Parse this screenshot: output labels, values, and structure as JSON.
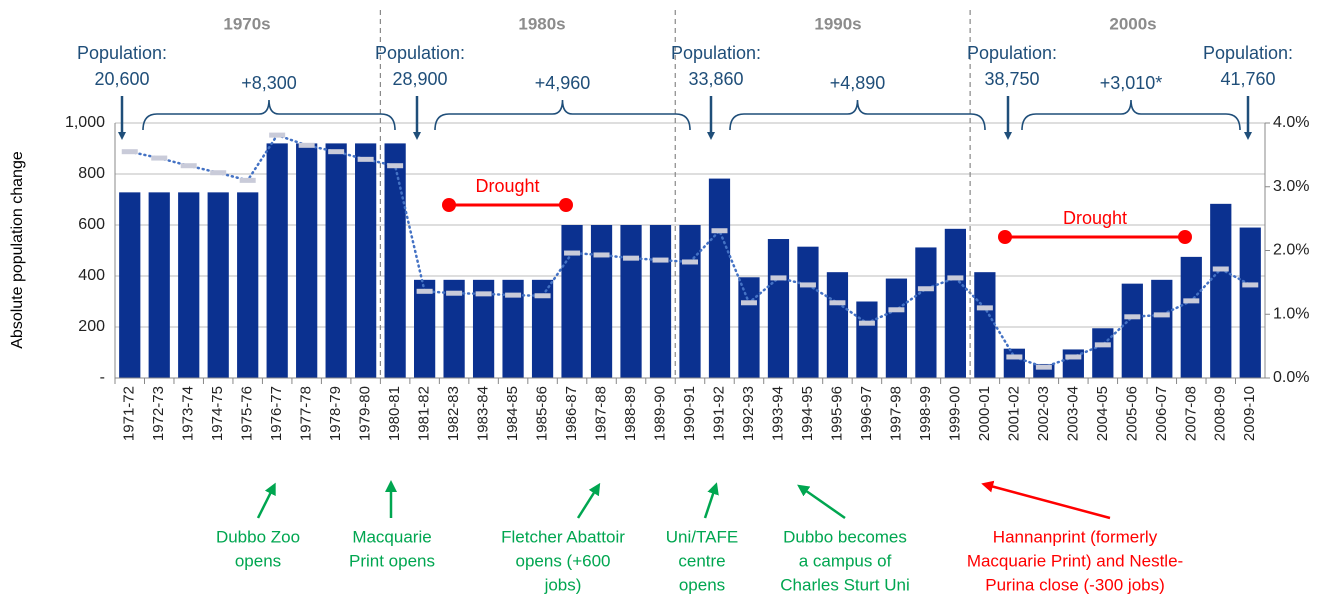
{
  "chart_data": {
    "type": "bar",
    "y_axis_label": "Absolute population change",
    "categories": [
      "1971-72",
      "1972-73",
      "1973-74",
      "1974-75",
      "1975-76",
      "1976-77",
      "1977-78",
      "1978-79",
      "1979-80",
      "1980-81",
      "1981-82",
      "1982-83",
      "1983-84",
      "1984-85",
      "1985-86",
      "1986-87",
      "1987-88",
      "1988-89",
      "1989-90",
      "1990-91",
      "1991-92",
      "1992-93",
      "1993-94",
      "1994-95",
      "1995-96",
      "1996-97",
      "1997-98",
      "1998-99",
      "1999-00",
      "2000-01",
      "2001-02",
      "2002-03",
      "2003-04",
      "2004-05",
      "2005-06",
      "2006-07",
      "2007-08",
      "2008-09",
      "2009-10"
    ],
    "series": [
      {
        "color": "#0b3190",
        "values": [
          728,
          728,
          728,
          728,
          728,
          920,
          920,
          920,
          920,
          920,
          385,
          385,
          385,
          385,
          385,
          600,
          600,
          600,
          600,
          600,
          782,
          395,
          545,
          515,
          415,
          300,
          390,
          512,
          585,
          415,
          115,
          55,
          112,
          195,
          370,
          385,
          475,
          683,
          590
        ]
      },
      {
        "type": "line",
        "axis": "y2",
        "color": "#4472c4",
        "marker_color": "#c9cbd9",
        "values": [
          3.55,
          3.45,
          3.33,
          3.22,
          3.1,
          3.81,
          3.65,
          3.55,
          3.43,
          3.33,
          1.36,
          1.33,
          1.32,
          1.3,
          1.29,
          1.96,
          1.93,
          1.88,
          1.85,
          1.82,
          2.31,
          1.18,
          1.57,
          1.46,
          1.18,
          0.86,
          1.07,
          1.4,
          1.57,
          1.1,
          0.33,
          0.17,
          0.33,
          0.52,
          0.96,
          0.99,
          1.21,
          1.71,
          1.46
        ]
      }
    ],
    "ylim": [
      0,
      1000
    ],
    "yticks": [
      {
        "value": 0,
        "label": "-"
      },
      200,
      400,
      600,
      800,
      {
        "value": 1000,
        "label": "1,000"
      }
    ],
    "y2lim": [
      0,
      4
    ],
    "y2ticks": [
      {
        "value": 0,
        "label": "0.0%"
      },
      {
        "value": 1,
        "label": "1.0%"
      },
      {
        "value": 2,
        "label": "2.0%"
      },
      {
        "value": 3,
        "label": "3.0%"
      },
      {
        "value": 4,
        "label": "4.0%"
      }
    ],
    "grid": true,
    "decades": [
      "1970s",
      "1980s",
      "1990s",
      "2000s"
    ],
    "population": [
      {
        "label": "Population:",
        "value": "20,600"
      },
      {
        "label": "Population:",
        "value": "28,900"
      },
      {
        "label": "Population:",
        "value": "33,860"
      },
      {
        "label": "Population:",
        "value": "38,750"
      },
      {
        "label": "Population:",
        "value": "41,760"
      }
    ],
    "changes": [
      "+8,300",
      "+4,960",
      "+4,890",
      "+3,010*"
    ],
    "droughts": [
      "Drought",
      "Drought"
    ],
    "events": [
      {
        "lines": [
          "Dubbo Zoo",
          "opens"
        ],
        "color": "#00a650"
      },
      {
        "lines": [
          "Macquarie",
          "Print opens"
        ],
        "color": "#00a650"
      },
      {
        "lines": [
          "Fletcher Abattoir",
          "opens (+600",
          "jobs)"
        ],
        "color": "#00a650"
      },
      {
        "lines": [
          "Uni/TAFE",
          "centre",
          "opens"
        ],
        "color": "#00a650"
      },
      {
        "lines": [
          "Dubbo becomes",
          "a campus of",
          "Charles Sturt Uni"
        ],
        "color": "#00a650"
      },
      {
        "lines": [
          "Hannanprint (formerly",
          "Macquarie Print) and Nestle-",
          "Purina close (-300 jobs)"
        ],
        "color": "#ff0000"
      }
    ]
  }
}
